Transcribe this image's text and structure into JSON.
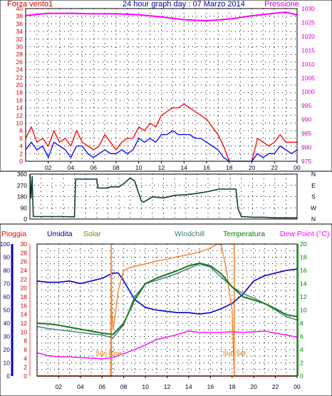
{
  "chart_data": [
    {
      "type": "line",
      "title": "24 hour graph day : 07 Marzo 2014",
      "left_label": "Forza vento1",
      "right_label": "Pressione",
      "x_ticks": [
        "02",
        "04",
        "06",
        "08",
        "10",
        "12",
        "14",
        "16",
        "18",
        "20",
        "22",
        "00"
      ],
      "y_left_ticks": [
        "0",
        "2",
        "4",
        "6",
        "8",
        "10",
        "12",
        "14",
        "16",
        "18",
        "20",
        "22",
        "24",
        "26",
        "28",
        "30",
        "32",
        "34",
        "36",
        "38",
        "40"
      ],
      "y_right_ticks": [
        "975",
        "980",
        "985",
        "990",
        "995",
        "1000",
        "1005",
        "1010",
        "1015",
        "1020",
        "1025",
        "1030"
      ],
      "xlim": [
        0,
        24
      ],
      "ylim_left": [
        0,
        40
      ],
      "ylim_right": [
        975,
        1030
      ],
      "grid": true,
      "colors": {
        "gust": "#ff0000",
        "wind": "#0000ff",
        "pressure": "#ff00ff",
        "left_axis": "#cc0000",
        "right_axis": "#cc00cc"
      },
      "series": [
        {
          "key": "gust",
          "color": "#ff0000",
          "axis": "left",
          "x": [
            0,
            0.5,
            1,
            1.5,
            2,
            2.5,
            3,
            3.5,
            4,
            4.5,
            5,
            5.5,
            6,
            6.5,
            7,
            7.5,
            8,
            8.5,
            9,
            9.5,
            10,
            10.5,
            11,
            11.5,
            12,
            12.5,
            13,
            13.5,
            14,
            14.5,
            15,
            15.5,
            16,
            16.5,
            17,
            17.5,
            18,
            18.5,
            19,
            19.5,
            20,
            20.5,
            21,
            21.5,
            22,
            22.5,
            23,
            23.5,
            24
          ],
          "y": [
            6,
            9,
            5,
            6,
            4,
            8,
            5,
            6,
            4,
            8,
            5,
            4,
            3,
            4,
            7,
            5,
            3,
            5,
            6,
            6,
            9,
            8,
            10,
            9,
            12,
            13,
            14,
            14,
            15,
            14,
            13,
            12,
            11,
            9,
            7,
            4,
            0,
            0,
            0,
            0,
            0,
            6,
            5,
            4,
            5,
            7,
            5,
            5,
            5
          ]
        },
        {
          "key": "wind",
          "color": "#0000ff",
          "axis": "left",
          "x": [
            0,
            0.5,
            1,
            1.5,
            2,
            2.5,
            3,
            3.5,
            4,
            4.5,
            5,
            5.5,
            6,
            6.5,
            7,
            7.5,
            8,
            8.5,
            9,
            9.5,
            10,
            10.5,
            11,
            11.5,
            12,
            12.5,
            13,
            13.5,
            14,
            14.5,
            15,
            15.5,
            16,
            16.5,
            17,
            17.5,
            18,
            18.5,
            19,
            19.5,
            20,
            20.5,
            21,
            21.5,
            22,
            22.5,
            23,
            23.5,
            24
          ],
          "y": [
            3,
            5,
            3,
            4,
            1,
            5,
            4,
            3,
            1,
            4,
            4,
            2,
            1,
            2,
            3,
            2,
            2,
            3,
            2,
            3,
            6,
            5,
            6,
            5,
            7,
            7,
            8,
            7,
            7,
            7,
            6,
            6,
            5,
            4,
            3,
            1,
            0,
            0,
            0,
            0,
            0,
            2,
            1,
            2,
            2,
            4,
            3,
            2,
            3
          ]
        },
        {
          "key": "pressure",
          "color": "#ff00ff",
          "axis": "right",
          "x": [
            0,
            2,
            4,
            6,
            8,
            10,
            12,
            14,
            16,
            18,
            20,
            22,
            23,
            24
          ],
          "y": [
            1027.5,
            1028.3,
            1028.3,
            1028.1,
            1028.1,
            1027.8,
            1027.0,
            1026.0,
            1025.6,
            1026.2,
            1027.4,
            1028.3,
            1028.7,
            1027.7
          ]
        }
      ]
    },
    {
      "type": "line",
      "title": "",
      "x_ticks": [
        "02",
        "04",
        "06",
        "08",
        "10",
        "12",
        "14",
        "16",
        "18",
        "20",
        "22",
        "00"
      ],
      "y_left_ticks": [
        "0",
        "90",
        "180",
        "270",
        "360"
      ],
      "y_right_labels": [
        "N",
        "W",
        "S",
        "E",
        "N"
      ],
      "xlim": [
        0,
        24
      ],
      "ylim": [
        0,
        360
      ],
      "grid": true,
      "series": [
        {
          "key": "direction",
          "color": "#0d3d3d",
          "x": [
            0,
            0.1,
            0.2,
            0.3,
            1,
            2,
            3,
            3.8,
            4,
            4.1,
            5,
            6,
            6.1,
            7,
            7.2,
            8,
            8.5,
            9,
            9.4,
            10,
            10.2,
            11,
            12,
            13,
            14,
            15,
            16,
            17,
            18,
            18.5,
            18.7,
            19,
            20,
            21,
            22,
            23,
            24
          ],
          "y": [
            355,
            170,
            340,
            20,
            20,
            20,
            20,
            18,
            20,
            320,
            320,
            320,
            248,
            248,
            258,
            258,
            288,
            330,
            305,
            145,
            135,
            178,
            170,
            190,
            195,
            205,
            220,
            240,
            240,
            240,
            80,
            20,
            15,
            15,
            10,
            10,
            10
          ]
        }
      ]
    },
    {
      "type": "line",
      "title": "",
      "headers": {
        "rain": "Pioggia",
        "humidity": "Umidita",
        "solar": "Solar",
        "windchill": "Windchill",
        "temperature": "Temperatura",
        "dewpoint": "Dew Point (°C)"
      },
      "annotations": {
        "sunrise": "Sun Rise",
        "sunset": "Sun Set"
      },
      "sunrise_hour": 6.85,
      "sunset_hour": 18.2,
      "x_ticks": [
        "02",
        "04",
        "06",
        "08",
        "10",
        "12",
        "14",
        "16",
        "18",
        "20",
        "22",
        "00"
      ],
      "axis_rain_ticks": [
        "0",
        "2",
        "4",
        "6",
        "8",
        "10",
        "12",
        "14",
        "16",
        "18",
        "20",
        "22",
        "24",
        "26",
        "28",
        "30"
      ],
      "axis_humidity_ticks": [
        "0",
        "10",
        "20",
        "30",
        "40",
        "50",
        "60",
        "70",
        "80",
        "90",
        "100"
      ],
      "axis_temp_ticks": [
        "0",
        "2",
        "4",
        "6",
        "8",
        "10",
        "12",
        "14",
        "16",
        "18",
        "20"
      ],
      "xlim": [
        0,
        24
      ],
      "humidity_range": [
        0,
        100
      ],
      "rain_range": [
        0,
        30
      ],
      "temp_range": [
        0,
        20
      ],
      "grid": true,
      "colors": {
        "humidity": "#0000cc",
        "solar": "#ff7f27",
        "windchill": "#3d7a7a",
        "temperature": "#1a7a1a",
        "dewpoint": "#ff00ff",
        "rain": "#ff0000"
      },
      "series": [
        {
          "key": "humidity",
          "color": "#0000cc",
          "axis": "humidity",
          "x": [
            0,
            1,
            2,
            3,
            4,
            5,
            6,
            7,
            7.5,
            8,
            9,
            10,
            11,
            12,
            13,
            14,
            15,
            16,
            17,
            18,
            19,
            20,
            21,
            22,
            23,
            24
          ],
          "y": [
            72,
            71,
            71,
            72,
            70,
            72,
            74,
            78,
            78,
            72,
            58,
            52,
            50,
            49,
            48,
            48,
            47,
            48,
            51,
            55,
            62,
            72,
            76,
            78,
            80,
            81
          ]
        },
        {
          "key": "dewpoint",
          "color": "#ff00ff",
          "axis": "temperature",
          "x": [
            0,
            1,
            2,
            3,
            4,
            5,
            6,
            7,
            8,
            9,
            10,
            11,
            12,
            13,
            14,
            15,
            16,
            17,
            18,
            19,
            20,
            21,
            22,
            23,
            24
          ],
          "y": [
            3.5,
            3.1,
            2.9,
            2.9,
            2.8,
            2.7,
            2.6,
            2.8,
            3.4,
            4.0,
            4.7,
            5.5,
            5.9,
            6.3,
            6.8,
            6.6,
            6.6,
            6.6,
            6.7,
            6.6,
            6.7,
            6.8,
            6.5,
            6.2,
            5.9
          ]
        },
        {
          "key": "solar",
          "color": "#ff7f27",
          "axis": "temperature",
          "x": [
            0,
            6.8,
            6.85,
            6.9,
            7.0,
            7.2,
            7.5,
            8,
            8.5,
            9,
            10,
            11,
            12,
            13,
            14,
            15,
            16,
            16.5,
            16.8,
            17,
            17.5,
            17.8,
            18.0,
            18.2,
            18.5,
            24
          ],
          "y": [
            0,
            0,
            19.5,
            10,
            7,
            9,
            13,
            16,
            16.4,
            16.6,
            17.0,
            17.4,
            17.7,
            18.1,
            18.4,
            18.8,
            19.4,
            19.9,
            20,
            19.8,
            16,
            12,
            10,
            0,
            0,
            0
          ]
        },
        {
          "key": "windchill",
          "color": "#3d7a7a",
          "axis": "temperature",
          "x": [
            0,
            1,
            2,
            3,
            4,
            5,
            6,
            7,
            8,
            9,
            10,
            11,
            12,
            13,
            14,
            15,
            16,
            17,
            18,
            19,
            20,
            21,
            22,
            23,
            24
          ],
          "y": [
            7.5,
            7.2,
            7.0,
            6.8,
            6.6,
            6.4,
            6.2,
            5.8,
            7.8,
            12.0,
            14.0,
            14.5,
            15.0,
            15.6,
            16.3,
            17.0,
            16.5,
            15.0,
            13.5,
            12.5,
            11.8,
            11.0,
            10.0,
            9.0,
            8.5
          ]
        },
        {
          "key": "temperature",
          "color": "#1a7a1a",
          "axis": "temperature",
          "x": [
            0,
            1,
            2,
            3,
            4,
            5,
            6,
            7,
            8,
            9,
            10,
            11,
            12,
            13,
            14,
            15,
            16,
            17,
            18,
            19,
            20,
            21,
            22,
            23,
            24
          ],
          "y": [
            8.0,
            7.9,
            7.7,
            7.4,
            7.1,
            6.8,
            6.5,
            6.3,
            8.0,
            11.5,
            14.0,
            14.8,
            15.4,
            16.0,
            16.7,
            17.1,
            16.7,
            15.5,
            13.5,
            12.0,
            11.5,
            11.0,
            10.2,
            9.3,
            9.0
          ]
        },
        {
          "key": "rain",
          "color": "#ff0000",
          "axis": "rain",
          "x": [
            0,
            24
          ],
          "y": [
            0,
            0
          ]
        }
      ]
    }
  ]
}
